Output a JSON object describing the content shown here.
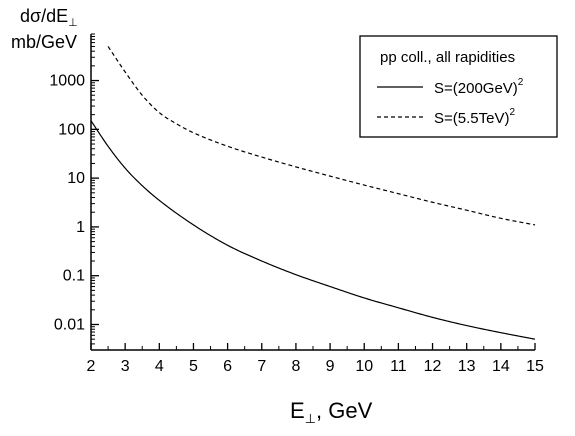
{
  "chart_data": {
    "type": "line",
    "title": "",
    "ylabel_line1": "dσ/dE",
    "ylabel_line1_sub": "⊥",
    "ylabel_line2": "mb/GeV",
    "xlabel_main": "E",
    "xlabel_sub": "⊥",
    "xlabel_rest": ", GeV",
    "xlim": [
      2,
      15
    ],
    "ylim": [
      0.003,
      9000
    ],
    "yscale": "log",
    "x_ticks": [
      2,
      3,
      4,
      5,
      6,
      7,
      8,
      9,
      10,
      11,
      12,
      13,
      14,
      15
    ],
    "y_ticks": [
      {
        "value": 0.01,
        "label": "0.01"
      },
      {
        "value": 0.1,
        "label": "0.1"
      },
      {
        "value": 1,
        "label": "1"
      },
      {
        "value": 10,
        "label": "10"
      },
      {
        "value": 100,
        "label": "100"
      },
      {
        "value": 1000,
        "label": "1000"
      }
    ],
    "grid": false,
    "legend": {
      "position": "top-right",
      "title": "pp coll., all rapidities"
    },
    "series": [
      {
        "name": "S=(200GeV)",
        "name_sup": "2",
        "style": "solid",
        "x": [
          2,
          2.5,
          3,
          3.5,
          4,
          5,
          6,
          7,
          8,
          9,
          10,
          11,
          12,
          13,
          14,
          15
        ],
        "y": [
          150,
          45,
          16,
          7,
          3.5,
          1.1,
          0.42,
          0.2,
          0.105,
          0.06,
          0.035,
          0.022,
          0.014,
          0.0095,
          0.0068,
          0.005
        ]
      },
      {
        "name": "S=(5.5TeV)",
        "name_sup": "2",
        "style": "dashed",
        "x": [
          2.5,
          3,
          3.5,
          4,
          4.5,
          5,
          6,
          7,
          8,
          9,
          10,
          11,
          12,
          13,
          14,
          15
        ],
        "y": [
          5000,
          1500,
          500,
          220,
          130,
          85,
          45,
          27,
          17,
          11,
          7.2,
          4.8,
          3.2,
          2.2,
          1.5,
          1.1
        ]
      }
    ]
  }
}
